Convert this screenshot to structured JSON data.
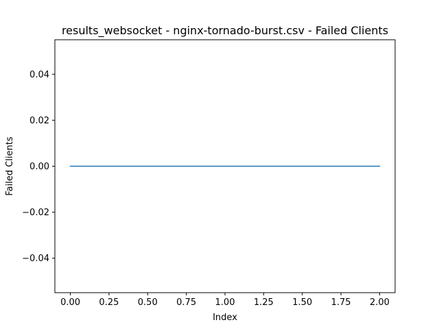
{
  "chart_data": {
    "type": "line",
    "title": "results_websocket - nginx-tornado-burst.csv - Failed Clients",
    "xlabel": "Index",
    "ylabel": "Failed Clients",
    "xlim": [
      -0.1,
      2.1
    ],
    "ylim": [
      -0.055,
      0.055
    ],
    "x_ticks": [
      0.0,
      0.25,
      0.5,
      0.75,
      1.0,
      1.25,
      1.5,
      1.75,
      2.0
    ],
    "x_tick_labels": [
      "0.00",
      "0.25",
      "0.50",
      "0.75",
      "1.00",
      "1.25",
      "1.50",
      "1.75",
      "2.00"
    ],
    "y_ticks": [
      -0.04,
      -0.02,
      0.0,
      0.02,
      0.04
    ],
    "y_tick_labels": [
      "−0.04",
      "−0.02",
      "0.00",
      "0.02",
      "0.04"
    ],
    "grid": false,
    "series": [
      {
        "color": "#1f77b4",
        "x": [
          0,
          1,
          2
        ],
        "values": [
          0,
          0,
          0
        ]
      }
    ]
  }
}
